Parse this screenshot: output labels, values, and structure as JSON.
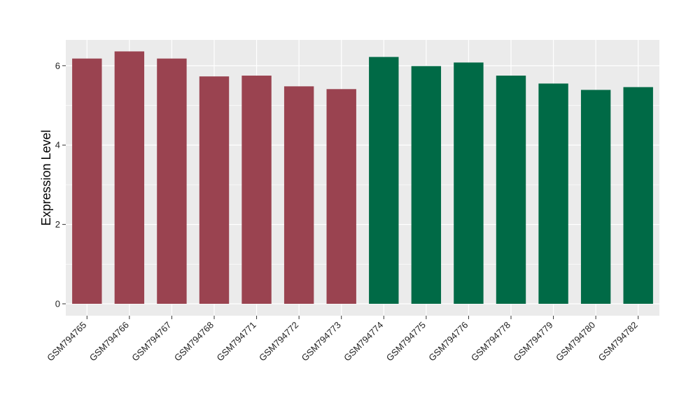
{
  "chart_data": {
    "type": "bar",
    "title": "",
    "xlabel": "",
    "ylabel": "Expression Level",
    "categories": [
      "GSM794765",
      "GSM794766",
      "GSM794767",
      "GSM794768",
      "GSM794771",
      "GSM794772",
      "GSM794773",
      "GSM794774",
      "GSM794775",
      "GSM794776",
      "GSM794778",
      "GSM794779",
      "GSM794780",
      "GSM794782"
    ],
    "values": [
      6.18,
      6.36,
      6.18,
      5.73,
      5.75,
      5.48,
      5.41,
      6.22,
      5.99,
      6.08,
      5.75,
      5.55,
      5.39,
      5.46
    ],
    "bar_colors": [
      "#9A4350",
      "#9A4350",
      "#9A4350",
      "#9A4350",
      "#9A4350",
      "#9A4350",
      "#9A4350",
      "#006A46",
      "#006A46",
      "#006A46",
      "#006A46",
      "#006A46",
      "#006A46",
      "#006A46"
    ],
    "ylim": [
      -0.3,
      6.65
    ],
    "yticks": [
      0,
      2,
      4,
      6
    ],
    "ytick_labels": [
      "0",
      "2",
      "4",
      "6"
    ],
    "grid": true,
    "legend": "none",
    "panel_background": "#EBEBEB",
    "grid_color": "#FFFFFF"
  }
}
